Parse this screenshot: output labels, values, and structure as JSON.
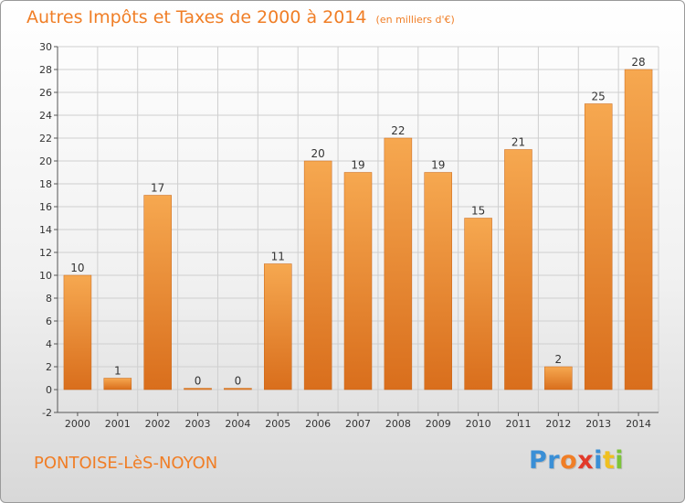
{
  "place": "PONTOISE-LèS-NOYON",
  "brand": {
    "text": "Proxiti",
    "letter_colors": [
      "#3a8fd6",
      "#3a8fd6",
      "#f07e26",
      "#e23a2a",
      "#3a8fd6",
      "#f0c020",
      "#7cc43a"
    ]
  },
  "colors": {
    "title": "#f07e26",
    "bar_top": "#f6a850",
    "bar_bottom": "#d96e1c",
    "grid": "#cfcfcf"
  },
  "chart_data": {
    "type": "bar",
    "title": "Autres Impôts et Taxes de 2000 à 2014",
    "subtitle": "(en milliers d'€)",
    "xlabel": "",
    "ylabel": "",
    "categories": [
      "2000",
      "2001",
      "2002",
      "2003",
      "2004",
      "2005",
      "2006",
      "2007",
      "2008",
      "2009",
      "2010",
      "2011",
      "2012",
      "2013",
      "2014"
    ],
    "values": [
      10,
      1,
      17,
      0,
      0,
      11,
      20,
      19,
      22,
      19,
      15,
      21,
      2,
      25,
      28
    ],
    "data_labels": [
      "10",
      "1",
      "17",
      "0",
      "0",
      "11",
      "20",
      "19",
      "22",
      "19",
      "15",
      "21",
      "2",
      "25",
      "28"
    ],
    "ylim": [
      -2,
      30
    ],
    "yticks": [
      -2,
      0,
      2,
      4,
      6,
      8,
      10,
      12,
      14,
      16,
      18,
      20,
      22,
      24,
      26,
      28,
      30
    ],
    "grid": true,
    "legend": "none"
  }
}
